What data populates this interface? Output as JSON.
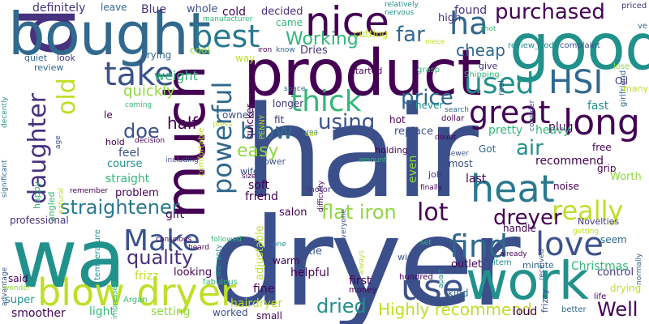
{
  "palette": {
    "purple": "#440154",
    "indigo": "#3b528b",
    "blue": "#31688e",
    "teal": "#21918c",
    "green": "#35b779",
    "lime": "#90d743",
    "yellow": "#bddf26",
    "dark": "#46327e"
  },
  "words": [
    {
      "text": "hair",
      "color": "#3b4f8a"
    },
    {
      "text": "dryer",
      "color": "#3b4f8a"
    },
    {
      "text": "wa",
      "color": "#21918c"
    },
    {
      "text": "dry",
      "color": "#46327e"
    },
    {
      "text": "product",
      "color": "#440154"
    },
    {
      "text": "bought",
      "color": "#31688e"
    },
    {
      "text": "good",
      "color": "#21918c"
    },
    {
      "text": "much",
      "color": "#440154"
    },
    {
      "text": "work",
      "color": "#21918c"
    },
    {
      "text": "nice",
      "color": "#440154"
    },
    {
      "text": "blow dryer",
      "color": "#bddf26"
    },
    {
      "text": "heat",
      "color": "#2a788e"
    },
    {
      "text": "long",
      "color": "#440154"
    },
    {
      "text": "love",
      "color": "#3b528b"
    },
    {
      "text": "use",
      "color": "#3b528b"
    },
    {
      "text": "find",
      "color": "#31688e"
    },
    {
      "text": "Make",
      "color": "#3b528b"
    },
    {
      "text": "ha",
      "color": "#31688e"
    },
    {
      "text": "take",
      "color": "#3b528b"
    },
    {
      "text": "best",
      "color": "#2a788e"
    },
    {
      "text": "thick",
      "color": "#35b779"
    },
    {
      "text": "great",
      "color": "#440154"
    },
    {
      "text": "HSI",
      "color": "#31688e"
    },
    {
      "text": "used",
      "color": "#21918c"
    },
    {
      "text": "powerful",
      "color": "#31688e"
    },
    {
      "text": "daughter",
      "color": "#46327e"
    },
    {
      "text": "old",
      "color": "#bddf26"
    },
    {
      "text": "purchased",
      "color": "#440154"
    },
    {
      "text": "really",
      "color": "#bddf26"
    },
    {
      "text": "straightener",
      "color": "#2a788e"
    },
    {
      "text": "quality",
      "color": "#46327e"
    },
    {
      "text": "flat iron",
      "color": "#90d743"
    },
    {
      "text": "lot",
      "color": "#440154"
    },
    {
      "text": "dreyer",
      "color": "#440154"
    },
    {
      "text": "dried",
      "color": "#21918c"
    },
    {
      "text": "Highly recommend",
      "color": "#bddf26"
    },
    {
      "text": "Well",
      "color": "#440154"
    },
    {
      "text": "blow",
      "color": "#31688e"
    },
    {
      "text": "using",
      "color": "#3b528b"
    },
    {
      "text": "price",
      "color": "#31688e"
    },
    {
      "text": "air",
      "color": "#21918c"
    },
    {
      "text": "Working",
      "color": "#35b779"
    },
    {
      "text": "far",
      "color": "#31688e"
    },
    {
      "text": "easy",
      "color": "#90d743"
    },
    {
      "text": "doe",
      "color": "#3b528b"
    },
    {
      "text": "half",
      "color": "#440154"
    },
    {
      "text": "quickly",
      "color": "#90d743"
    },
    {
      "text": "weight",
      "color": "#35b779"
    },
    {
      "text": "cheap",
      "color": "#31688e"
    },
    {
      "text": "definitely",
      "color": "#46327e"
    },
    {
      "text": "leave",
      "color": "#31688e"
    },
    {
      "text": "Blue",
      "color": "#46327e"
    },
    {
      "text": "whole",
      "color": "#3b528b"
    },
    {
      "text": "cold",
      "color": "#440154"
    },
    {
      "text": "decided",
      "color": "#46327e"
    },
    {
      "text": "came",
      "color": "#35b779"
    },
    {
      "text": "Dries",
      "color": "#46327e"
    },
    {
      "text": "cutting",
      "color": "#bddf26"
    },
    {
      "text": "found",
      "color": "#46327e"
    },
    {
      "text": "high",
      "color": "#46327e"
    },
    {
      "text": "priced",
      "color": "#46327e"
    },
    {
      "text": "manufacturer",
      "color": "#35b779"
    },
    {
      "text": "relatively",
      "color": "#21918c"
    },
    {
      "text": "nervous",
      "color": "#21918c"
    },
    {
      "text": "review_body",
      "color": "#21918c"
    },
    {
      "text": "complaint",
      "color": "#3b528b"
    },
    {
      "text": "shot",
      "color": "#35b779"
    },
    {
      "text": "niece",
      "color": "#bddf26"
    },
    {
      "text": "girlfriend",
      "color": "#31688e"
    },
    {
      "text": "ve",
      "color": "#31688e"
    },
    {
      "text": "quiet",
      "color": "#31688e"
    },
    {
      "text": "look",
      "color": "#46327e"
    },
    {
      "text": "trying",
      "color": "#31688e"
    },
    {
      "text": "cool",
      "color": "#90d743"
    },
    {
      "text": "way",
      "color": "#bddf26"
    },
    {
      "text": "iron",
      "color": "#440154"
    },
    {
      "text": "know",
      "color": "#31688e"
    },
    {
      "text": "started",
      "color": "#440154"
    },
    {
      "text": "give",
      "color": "#46327e"
    },
    {
      "text": "lose",
      "color": "#90d743"
    },
    {
      "text": "Oil",
      "color": "#46327e"
    },
    {
      "text": "many",
      "color": "#bddf26"
    },
    {
      "text": "fast",
      "color": "#21918c"
    },
    {
      "text": "review",
      "color": "#31688e"
    },
    {
      "text": "le",
      "color": "#440154"
    },
    {
      "text": "hold",
      "color": "#440154"
    },
    {
      "text": "decision",
      "color": "#440154"
    },
    {
      "text": "feel",
      "color": "#3b528b"
    },
    {
      "text": "course",
      "color": "#21918c"
    },
    {
      "text": "including",
      "color": "#3b528b"
    },
    {
      "text": "straight",
      "color": "#35b779"
    },
    {
      "text": "problem",
      "color": "#440154"
    },
    {
      "text": "gift",
      "color": "#440154"
    },
    {
      "text": "comfortable",
      "color": "#bddf26"
    },
    {
      "text": "soft",
      "color": "#440154"
    },
    {
      "text": "friend",
      "color": "#440154"
    },
    {
      "text": "salon",
      "color": "#440154"
    },
    {
      "text": "owned",
      "color": "#3b528b"
    },
    {
      "text": "fit",
      "color": "#46327e"
    },
    {
      "text": "wife",
      "color": "#3b528b"
    },
    {
      "text": "power",
      "color": "#3b528b"
    },
    {
      "text": "motor",
      "color": "#46327e"
    },
    {
      "text": "even",
      "color": "#90d743"
    },
    {
      "text": "job",
      "color": "#46327e"
    },
    {
      "text": "replace",
      "color": "#3b528b"
    },
    {
      "text": "holding",
      "color": "#440154"
    },
    {
      "text": "almost",
      "color": "#3b528b"
    },
    {
      "text": "last",
      "color": "#440154"
    },
    {
      "text": "recommend",
      "color": "#440154"
    },
    {
      "text": "free",
      "color": "#440154"
    },
    {
      "text": "grip",
      "color": "#440154"
    },
    {
      "text": "Worth",
      "color": "#90d743"
    },
    {
      "text": "noise",
      "color": "#440154"
    },
    {
      "text": "Novelties",
      "color": "#46327e"
    },
    {
      "text": "handle",
      "color": "#440154"
    },
    {
      "text": "seem",
      "color": "#31688e"
    },
    {
      "text": "control",
      "color": "#46327e"
    },
    {
      "text": "Christmas",
      "color": "#35b779"
    },
    {
      "text": "drying",
      "color": "#bddf26"
    },
    {
      "text": "normally",
      "color": "#31688e"
    },
    {
      "text": "life",
      "color": "#440154"
    },
    {
      "text": "better",
      "color": "#31688e"
    },
    {
      "text": "kind",
      "color": "#31688e"
    },
    {
      "text": "loud",
      "color": "#440154"
    },
    {
      "text": "frizzy",
      "color": "#3b528b"
    },
    {
      "text": "item",
      "color": "#21918c"
    },
    {
      "text": "minute",
      "color": "#31688e"
    },
    {
      "text": "outlet",
      "color": "#440154"
    },
    {
      "text": "hundred",
      "color": "#440154"
    },
    {
      "text": "first",
      "color": "#440154"
    },
    {
      "text": "money",
      "color": "#440154"
    },
    {
      "text": "helpful",
      "color": "#440154"
    },
    {
      "text": "fine",
      "color": "#440154"
    },
    {
      "text": "warm",
      "color": "#440154"
    },
    {
      "text": "little",
      "color": "#3b528b"
    },
    {
      "text": "adjustable",
      "color": "#bddf26"
    },
    {
      "text": "hairdryer",
      "color": "#bddf26"
    },
    {
      "text": "worked",
      "color": "#3b528b"
    },
    {
      "text": "small",
      "color": "#440154"
    },
    {
      "text": "setting",
      "color": "#90d743"
    },
    {
      "text": "light",
      "color": "#35b779"
    },
    {
      "text": "smoother",
      "color": "#440154"
    },
    {
      "text": "super",
      "color": "#21918c"
    },
    {
      "text": "said",
      "color": "#440154"
    },
    {
      "text": "professional",
      "color": "#46327e"
    },
    {
      "text": "temperature",
      "color": "#21918c"
    },
    {
      "text": "frizz",
      "color": "#bddf26"
    },
    {
      "text": "looking",
      "color": "#440154"
    },
    {
      "text": "fabulous",
      "color": "#35b779"
    },
    {
      "text": "Argan",
      "color": "#35b779"
    },
    {
      "text": "quicker",
      "color": "#440154"
    },
    {
      "text": "longer",
      "color": "#46327e"
    },
    {
      "text": "never",
      "color": "#21918c"
    },
    {
      "text": "search",
      "color": "#31688e"
    },
    {
      "text": "hot",
      "color": "#440154"
    },
    {
      "text": "dollar",
      "color": "#440154"
    },
    {
      "text": "plug",
      "color": "#440154"
    },
    {
      "text": "pretty",
      "color": "#35b779"
    },
    {
      "text": "heavy",
      "color": "#35b779"
    },
    {
      "text": "Got",
      "color": "#31688e"
    },
    {
      "text": "newer",
      "color": "#3b528b"
    },
    {
      "text": "finally",
      "color": "#440154"
    },
    {
      "text": "Shipping",
      "color": "#35b779"
    },
    {
      "text": "grasp",
      "color": "#35b779"
    },
    {
      "text": "real",
      "color": "#3b528b"
    },
    {
      "text": "consider",
      "color": "#3b528b"
    },
    {
      "text": "decently",
      "color": "#21918c"
    },
    {
      "text": "significant",
      "color": "#31688e"
    },
    {
      "text": "happy",
      "color": "#35b779"
    },
    {
      "text": "angled",
      "color": "#35b779"
    },
    {
      "text": "advantage",
      "color": "#3b528b"
    },
    {
      "text": "wonder",
      "color": "#90d743"
    },
    {
      "text": "conscious",
      "color": "#440154"
    },
    {
      "text": "heard",
      "color": "#440154"
    },
    {
      "text": "impressed",
      "color": "#35b779"
    },
    {
      "text": "remember",
      "color": "#440154"
    },
    {
      "text": "natural",
      "color": "#bddf26"
    },
    {
      "text": "age",
      "color": "#3b528b"
    },
    {
      "text": "coming",
      "color": "#35b779"
    },
    {
      "text": "press",
      "color": "#bddf26"
    },
    {
      "text": "PENNY",
      "color": "#bddf26"
    },
    {
      "text": "space",
      "color": "#31688e"
    },
    {
      "text": "size",
      "color": "#440154"
    },
    {
      "text": "difficulty",
      "color": "#440154"
    },
    {
      "text": "area",
      "color": "#31688e"
    },
    {
      "text": "cut",
      "color": "#bddf26"
    },
    {
      "text": "amount",
      "color": "#35b779"
    },
    {
      "text": "everyone",
      "color": "#3b528b"
    },
    {
      "text": "doubt",
      "color": "#440154"
    },
    {
      "text": "wish",
      "color": "#3b528b"
    },
    {
      "text": "set",
      "color": "#35b779"
    },
    {
      "text": "apart",
      "color": "#21918c"
    },
    {
      "text": "always",
      "color": "#bddf26"
    },
    {
      "text": "received",
      "color": "#3b528b"
    },
    {
      "text": "already",
      "color": "#440154"
    },
    {
      "text": "getting",
      "color": "#bddf26"
    },
    {
      "text": "followed",
      "color": "#35b779"
    },
    {
      "text": "warranty",
      "color": "#21918c"
    },
    {
      "text": "one",
      "color": "#21918c"
    }
  ]
}
